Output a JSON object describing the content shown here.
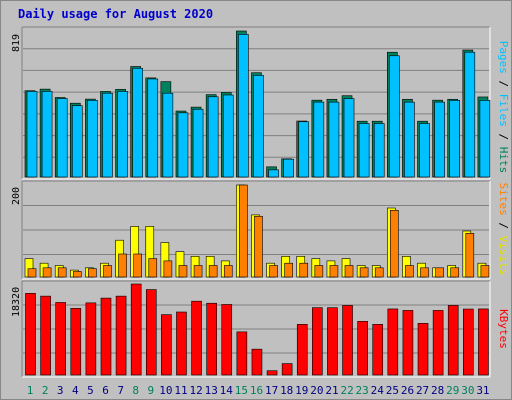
{
  "title": "Daily usage for August 2020",
  "colors": {
    "hits": "#00805c",
    "files": "#00c0ff",
    "visits": "#ffff00",
    "sites": "#ff8000",
    "kbytes": "#ff0000",
    "weekend_day": "#00805c",
    "weekday": "#000080",
    "panel_bg": "#c0c0c0",
    "grid": "#808080"
  },
  "chart_data": [
    {
      "type": "bar",
      "title": "Daily usage for August 2020",
      "categories": [
        "1",
        "2",
        "3",
        "4",
        "5",
        "6",
        "7",
        "8",
        "9",
        "10",
        "11",
        "12",
        "13",
        "14",
        "15",
        "16",
        "17",
        "18",
        "19",
        "20",
        "21",
        "22",
        "23",
        "24",
        "25",
        "26",
        "27",
        "28",
        "29",
        "30",
        "31"
      ],
      "weekend_days": [
        "1",
        "2",
        "8",
        "9",
        "15",
        "16",
        "22",
        "23",
        "29",
        "30"
      ],
      "ymax_label": "819",
      "ylim": [
        0,
        819
      ],
      "right_labels": [
        "Pages",
        "Files",
        "Hits"
      ],
      "series": [
        {
          "name": "Hits",
          "values": [
            484,
            493,
            446,
            414,
            437,
            480,
            492,
            620,
            556,
            535,
            370,
            392,
            462,
            474,
            819,
            585,
            57,
            102,
            314,
            431,
            436,
            456,
            313,
            313,
            700,
            436,
            313,
            431,
            436,
            712,
            449
          ]
        },
        {
          "name": "Files",
          "values": [
            480,
            480,
            440,
            400,
            430,
            470,
            480,
            610,
            550,
            470,
            360,
            380,
            450,
            460,
            800,
            570,
            40,
            100,
            310,
            420,
            420,
            440,
            300,
            300,
            680,
            420,
            300,
            420,
            430,
            700,
            430
          ]
        },
        {
          "name": "Pages",
          "values": [
            0,
            0,
            0,
            0,
            0,
            0,
            0,
            0,
            0,
            0,
            0,
            0,
            0,
            0,
            0,
            0,
            0,
            0,
            0,
            0,
            0,
            0,
            0,
            0,
            0,
            0,
            0,
            0,
            0,
            0,
            0
          ]
        }
      ]
    },
    {
      "type": "bar",
      "categories": [
        "1",
        "2",
        "3",
        "4",
        "5",
        "6",
        "7",
        "8",
        "9",
        "10",
        "11",
        "12",
        "13",
        "14",
        "15",
        "16",
        "17",
        "18",
        "19",
        "20",
        "21",
        "22",
        "23",
        "24",
        "25",
        "26",
        "27",
        "28",
        "29",
        "30",
        "31"
      ],
      "ymax_label": "200",
      "ylim": [
        0,
        200
      ],
      "right_labels": [
        "Sites",
        "Visits"
      ],
      "series": [
        {
          "name": "Visits",
          "values": [
            40,
            30,
            25,
            15,
            20,
            30,
            80,
            110,
            110,
            75,
            55,
            45,
            45,
            35,
            200,
            135,
            30,
            45,
            45,
            40,
            35,
            40,
            25,
            25,
            150,
            45,
            30,
            20,
            25,
            100,
            30
          ]
        },
        {
          "name": "Sites",
          "values": [
            18,
            20,
            20,
            12,
            18,
            25,
            50,
            50,
            40,
            35,
            25,
            25,
            25,
            25,
            200,
            132,
            25,
            30,
            30,
            25,
            25,
            25,
            20,
            20,
            145,
            25,
            20,
            20,
            20,
            95,
            25
          ]
        }
      ]
    },
    {
      "type": "bar",
      "categories": [
        "1",
        "2",
        "3",
        "4",
        "5",
        "6",
        "7",
        "8",
        "9",
        "10",
        "11",
        "12",
        "13",
        "14",
        "15",
        "16",
        "17",
        "18",
        "19",
        "20",
        "21",
        "22",
        "23",
        "24",
        "25",
        "26",
        "27",
        "28",
        "29",
        "30",
        "31"
      ],
      "ymax_label": "18320",
      "ylim": [
        0,
        18320
      ],
      "right_labels": [
        "KBytes"
      ],
      "series": [
        {
          "name": "KBytes",
          "values": [
            16440,
            15880,
            14600,
            13420,
            14520,
            15480,
            15880,
            18320,
            17200,
            12150,
            12680,
            14860,
            14450,
            14200,
            8680,
            5200,
            860,
            2300,
            10200,
            13560,
            13560,
            14000,
            10800,
            10200,
            13300,
            13000,
            10400,
            13000,
            14000,
            13280,
            13300
          ]
        }
      ]
    }
  ]
}
